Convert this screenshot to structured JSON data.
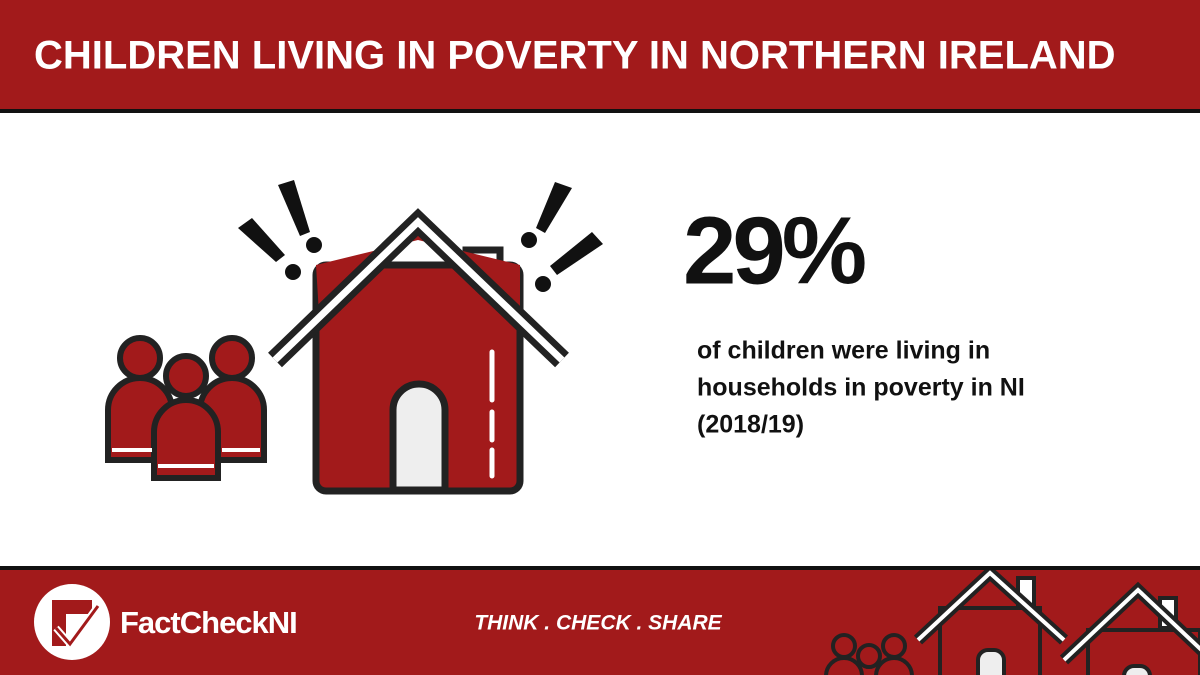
{
  "header": {
    "title": "CHILDREN LIVING IN POVERTY IN NORTHERN IRELAND"
  },
  "stat": {
    "value": "29%",
    "description": [
      "of children were living in",
      "households in poverty in NI",
      "(2018/19)"
    ]
  },
  "footer": {
    "brand": "FactCheckNI",
    "tagline": "THINK . CHECK . SHARE"
  }
}
